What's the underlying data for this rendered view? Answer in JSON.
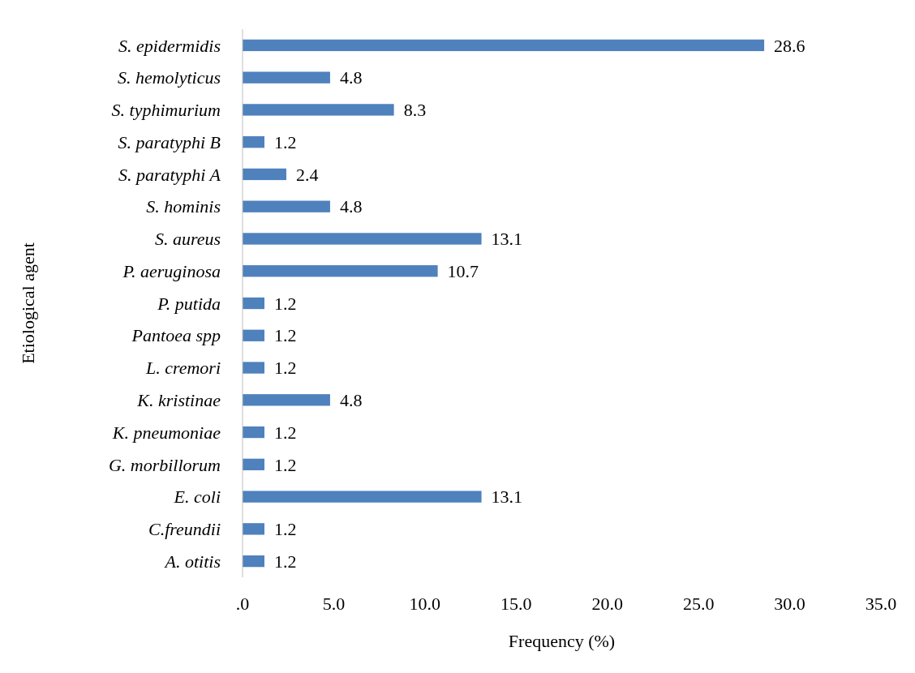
{
  "chart_data": {
    "type": "bar",
    "orientation": "horizontal",
    "xlabel": "Frequency (%)",
    "ylabel": "Etiological agent",
    "categories": [
      "S. epidermidis",
      "S. hemolyticus",
      "S. typhimurium",
      "S. paratyphi B",
      "S. paratyphi A",
      "S. hominis",
      "S. aureus",
      "P. aeruginosa",
      "P. putida",
      "Pantoea spp",
      "L. cremori",
      "K. kristinae",
      "K. pneumoniae",
      "G. morbillorum",
      "E. coli",
      "C.freundii",
      "A. otitis"
    ],
    "values": [
      28.6,
      4.8,
      8.3,
      1.2,
      2.4,
      4.8,
      13.1,
      10.7,
      1.2,
      1.2,
      1.2,
      4.8,
      1.2,
      1.2,
      13.1,
      1.2,
      1.2
    ],
    "color": "#4f81bd",
    "xlim": [
      0,
      35
    ],
    "xticks": [
      {
        "value": 0,
        "label": ".0"
      },
      {
        "value": 5,
        "label": "5.0"
      },
      {
        "value": 10,
        "label": "10.0"
      },
      {
        "value": 15,
        "label": "15.0"
      },
      {
        "value": 20,
        "label": "20.0"
      },
      {
        "value": 25,
        "label": "25.0"
      },
      {
        "value": 30,
        "label": "30.0"
      },
      {
        "value": 35,
        "label": "35.0"
      }
    ],
    "data_labels": true,
    "grid": false
  }
}
